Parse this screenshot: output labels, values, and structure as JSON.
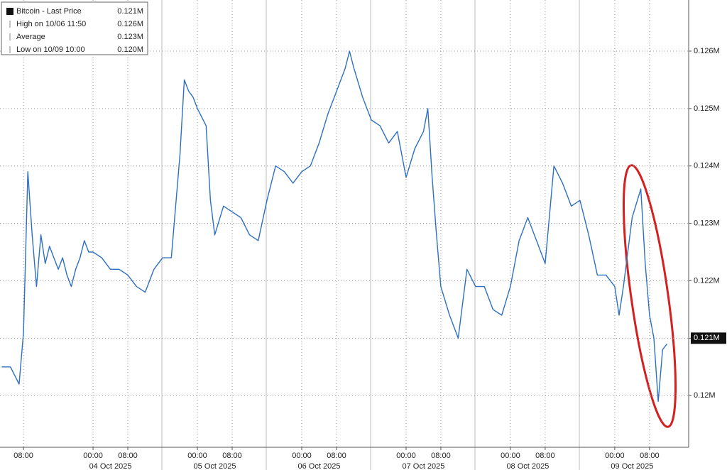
{
  "chart_data": {
    "type": "line",
    "legend": [
      {
        "label": "Bitcoin - Last Price",
        "value": 0.121,
        "value_label": "0.121M"
      },
      {
        "label": "High on 10/06 11:50",
        "value": 0.126,
        "value_label": "0.126M"
      },
      {
        "label": "Average",
        "value": 0.123,
        "value_label": "0.123M"
      },
      {
        "label": "Low on 10/09 10:00",
        "value": 0.12,
        "value_label": "0.120M"
      }
    ],
    "last_price_tag": {
      "value": 0.121,
      "label": "0.121M"
    },
    "x": [
      -21,
      -19,
      -17,
      -16,
      -15,
      -14,
      -13,
      -12,
      -11,
      -10,
      -9,
      -8,
      -7,
      -6,
      -5,
      -4,
      -3,
      -2,
      -1,
      0,
      2,
      4,
      6,
      8,
      10,
      12,
      14,
      16,
      18,
      19,
      20,
      21,
      22,
      23,
      24,
      26,
      27,
      28,
      30,
      32,
      34,
      36,
      38,
      40,
      42,
      44,
      46,
      48,
      50,
      52,
      54,
      56,
      58,
      59,
      60,
      62,
      64,
      66,
      68,
      70,
      72,
      74,
      76,
      77,
      78,
      79,
      80,
      82,
      84,
      86,
      88,
      90,
      92,
      94,
      96,
      98,
      100,
      102,
      104,
      106,
      108,
      110,
      112,
      114,
      116,
      118,
      120,
      121,
      122,
      124,
      126,
      127,
      128,
      129,
      130,
      131,
      132
    ],
    "series": [
      {
        "name": "Bitcoin - Last Price",
        "color": "#2e6fc2",
        "values": [
          0.1205,
          0.1205,
          0.1202,
          0.1211,
          0.1239,
          0.1228,
          0.1219,
          0.1228,
          0.1223,
          0.1226,
          0.1224,
          0.1222,
          0.1224,
          0.1221,
          0.1219,
          0.1222,
          0.1224,
          0.1227,
          0.1225,
          0.1225,
          0.1224,
          0.1222,
          0.1222,
          0.1221,
          0.1219,
          0.1218,
          0.1222,
          0.1224,
          0.1224,
          0.1233,
          0.1242,
          0.1255,
          0.1253,
          0.1252,
          0.125,
          0.1247,
          0.1234,
          0.1228,
          0.1233,
          0.1232,
          0.1231,
          0.1228,
          0.1227,
          0.1234,
          0.124,
          0.1239,
          0.1237,
          0.1239,
          0.124,
          0.1244,
          0.1249,
          0.1253,
          0.1257,
          0.126,
          0.1257,
          0.1252,
          0.1248,
          0.1247,
          0.1244,
          0.1246,
          0.1238,
          0.1243,
          0.1246,
          0.125,
          0.1238,
          0.1228,
          0.1219,
          0.1214,
          0.121,
          0.1222,
          0.1219,
          0.1219,
          0.1215,
          0.1214,
          0.1219,
          0.1227,
          0.1231,
          0.1227,
          0.1223,
          0.124,
          0.1237,
          0.1233,
          0.1234,
          0.1228,
          0.1221,
          0.1221,
          0.1219,
          0.1214,
          0.1219,
          0.1231,
          0.1236,
          0.1223,
          0.1214,
          0.121,
          0.1199,
          0.1208,
          0.1209
        ]
      }
    ],
    "xlim": [
      -21.4,
      137
    ],
    "xticks": [
      {
        "value": -16,
        "label": "08:00"
      },
      {
        "value": 0,
        "label": "00:00"
      },
      {
        "value": 8,
        "label": "08:00"
      },
      {
        "value": 24,
        "label": "00:00"
      },
      {
        "value": 32,
        "label": "08:00"
      },
      {
        "value": 48,
        "label": "00:00"
      },
      {
        "value": 56,
        "label": "08:00"
      },
      {
        "value": 72,
        "label": "00:00"
      },
      {
        "value": 80,
        "label": "08:00"
      },
      {
        "value": 96,
        "label": "00:00"
      },
      {
        "value": 104,
        "label": "08:00"
      },
      {
        "value": 120,
        "label": "00:00"
      },
      {
        "value": 128,
        "label": "08:00"
      }
    ],
    "date_labels": [
      {
        "value": 4,
        "label": "04 Oct 2025"
      },
      {
        "value": 28,
        "label": "05 Oct 2025"
      },
      {
        "value": 52,
        "label": "06 Oct 2025"
      },
      {
        "value": 76,
        "label": "07 Oct 2025"
      },
      {
        "value": 100,
        "label": "08 Oct 2025"
      },
      {
        "value": 124,
        "label": "09 Oct 2025"
      }
    ],
    "ylim": [
      0.1191,
      0.12689
    ],
    "yticks": [
      {
        "value": 0.12,
        "label": "0.12M"
      },
      {
        "value": 0.121,
        "label": "0.121M"
      },
      {
        "value": 0.122,
        "label": "0.122M"
      },
      {
        "value": 0.123,
        "label": "0.123M"
      },
      {
        "value": 0.124,
        "label": "0.124M"
      },
      {
        "value": 0.125,
        "label": "0.125M"
      },
      {
        "value": 0.126,
        "label": "0.126M"
      }
    ],
    "grid": true
  }
}
